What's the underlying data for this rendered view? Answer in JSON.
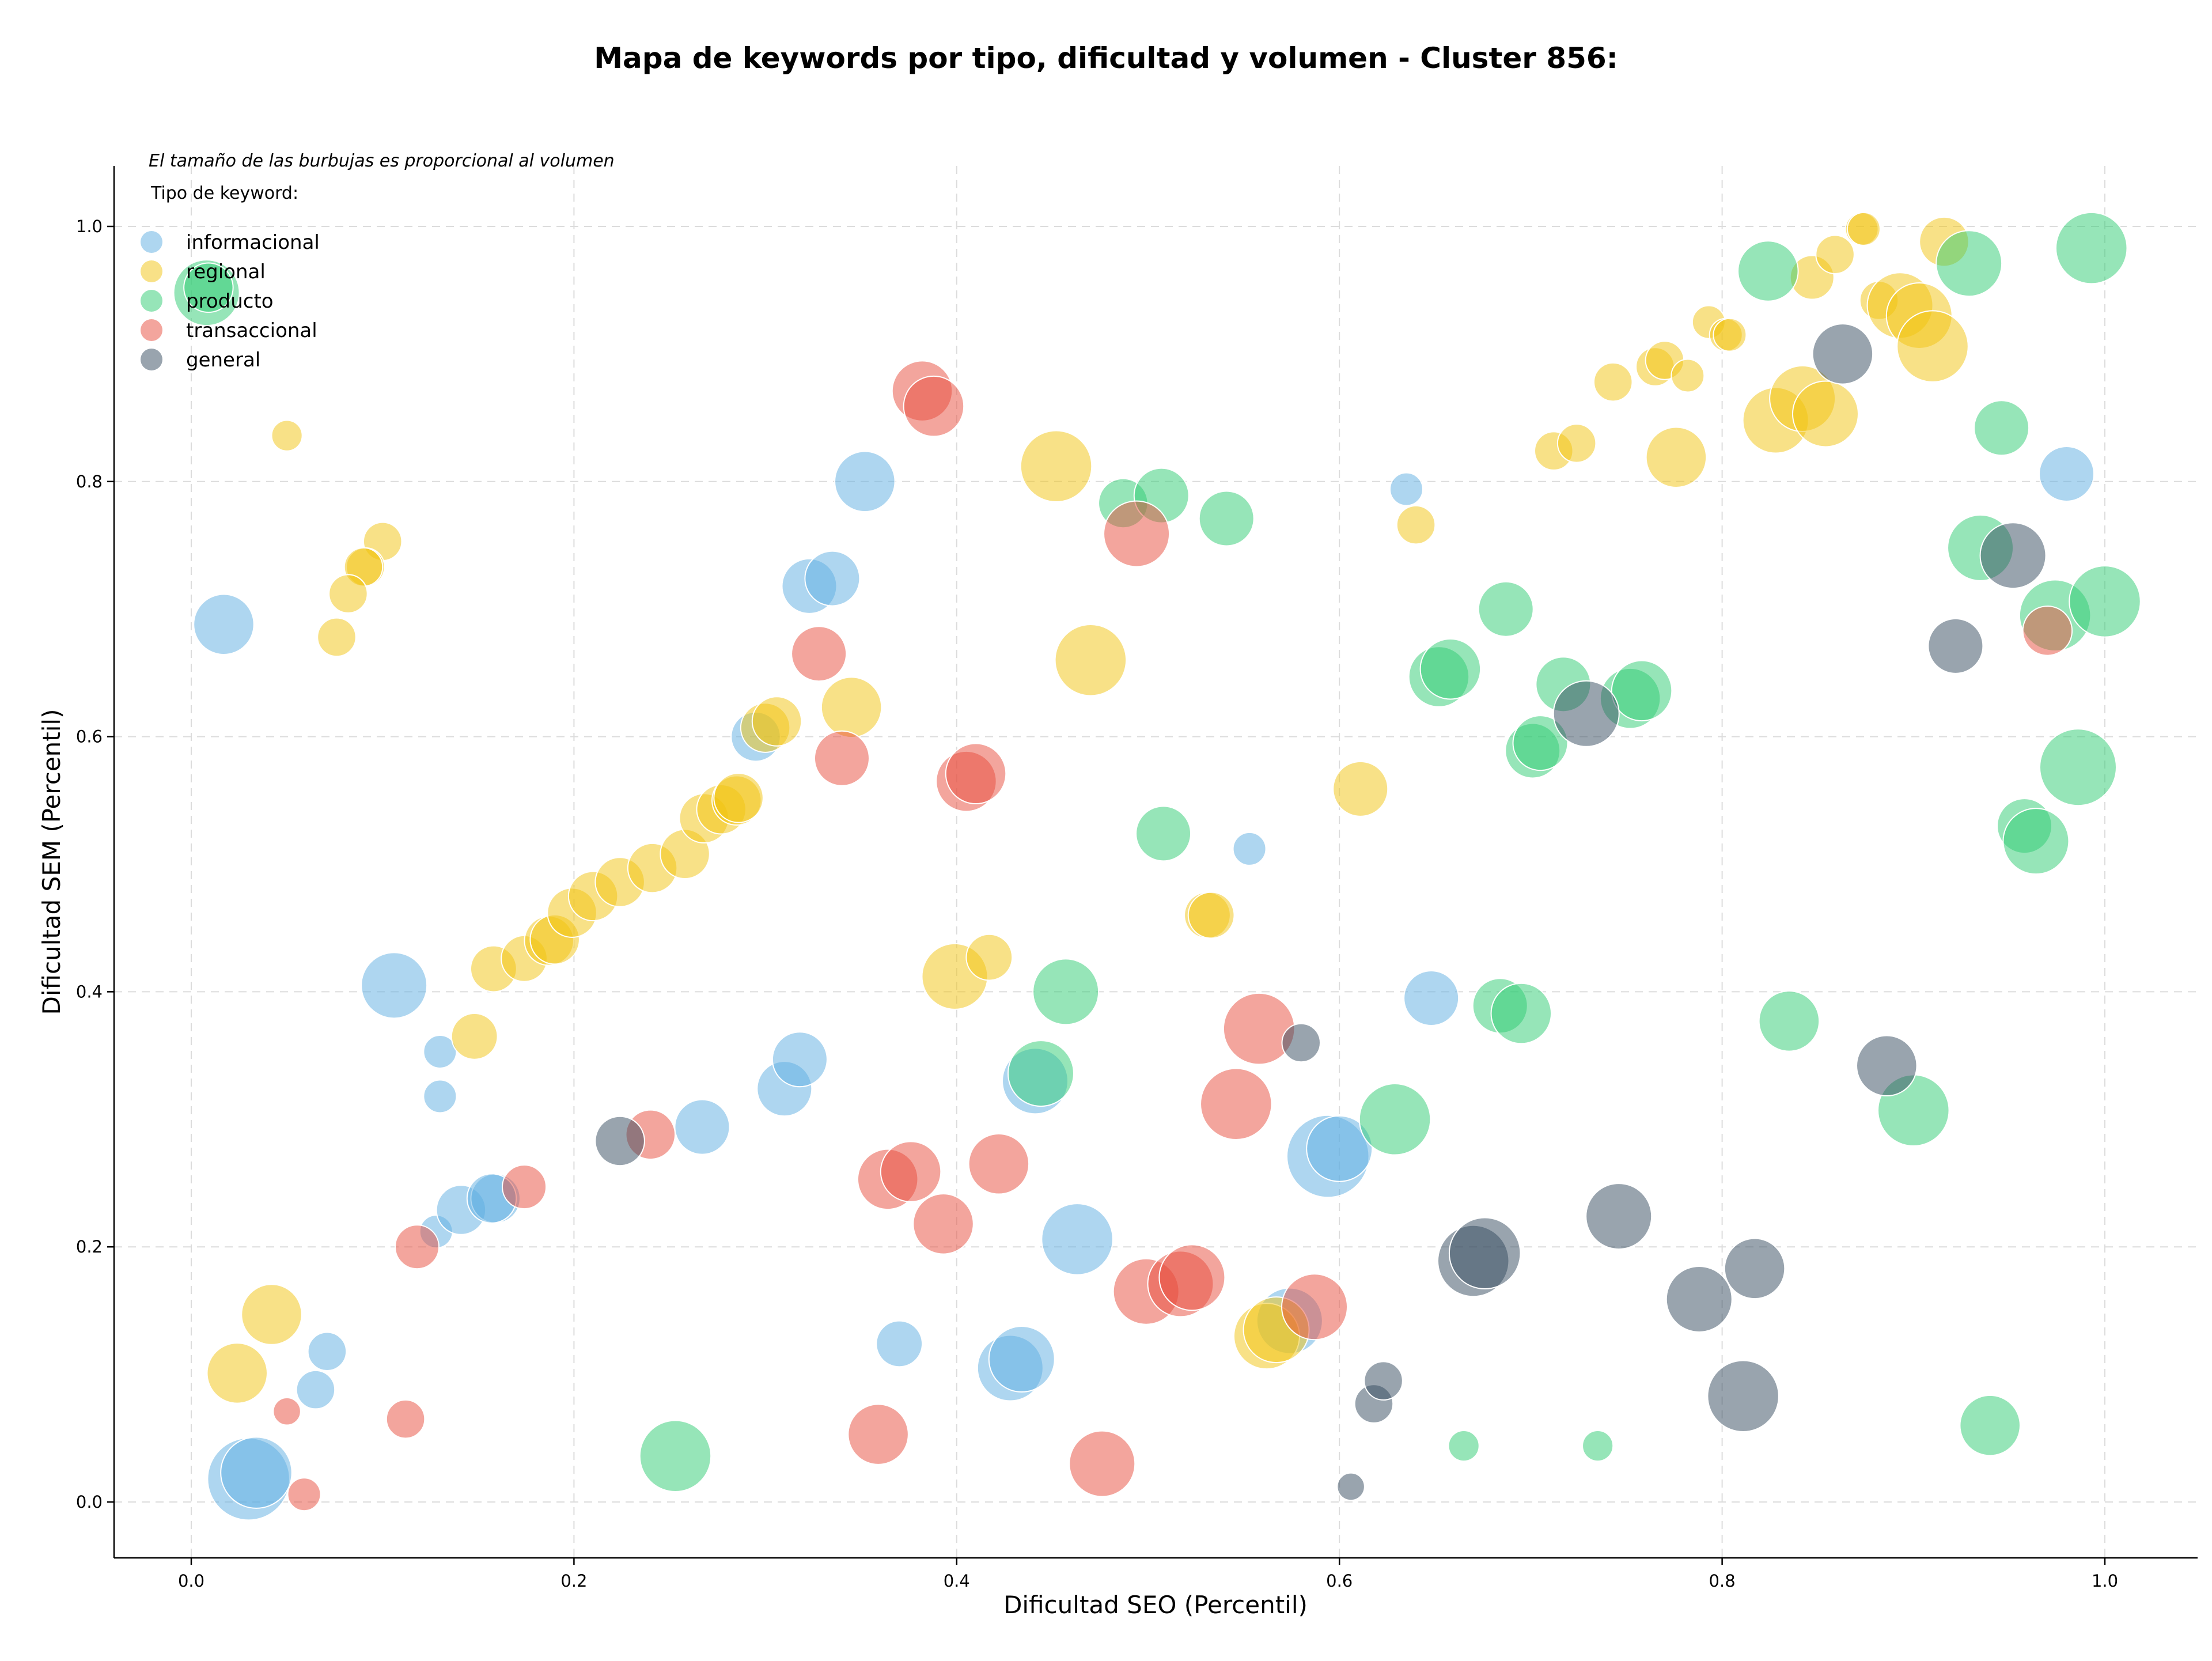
{
  "chart_data": {
    "type": "scatter",
    "title": "Mapa de keywords por tipo, dificultad y volumen - Cluster 856:",
    "xlabel": "Dificultad SEO (Percentil)",
    "ylabel": "Dificultad SEM (Percentil)",
    "xlim": [
      -0.04,
      1.05
    ],
    "ylim": [
      -0.04,
      1.05
    ],
    "xticks": [
      "0.0",
      "0.2",
      "0.4",
      "0.6",
      "0.8",
      "1.0"
    ],
    "yticks": [
      "0.0",
      "0.2",
      "0.4",
      "0.6",
      "0.8",
      "1.0"
    ],
    "grid": true,
    "note": "El tamaño de las burbujas es proporcional al volumen",
    "legend": {
      "title": "Tipo de keyword:",
      "placement": "top-left",
      "entries": [
        {
          "label": "informacional",
          "color": "#5dade2"
        },
        {
          "label": "regional",
          "color": "#f1c40f"
        },
        {
          "label": "producto",
          "color": "#2ecc71"
        },
        {
          "label": "transaccional",
          "color": "#e74c3c"
        },
        {
          "label": "general",
          "color": "#34495e"
        }
      ]
    },
    "size_scale": "volume",
    "series": [
      {
        "name": "informacional",
        "color": "#5dade2",
        "points": [
          [
            0.017,
            0.688,
            0.55
          ],
          [
            0.106,
            0.405,
            0.6
          ],
          [
            0.13,
            0.353,
            0.3
          ],
          [
            0.13,
            0.318,
            0.3
          ],
          [
            0.128,
            0.212,
            0.3
          ],
          [
            0.141,
            0.229,
            0.45
          ],
          [
            0.159,
            0.238,
            0.45
          ],
          [
            0.157,
            0.238,
            0.45
          ],
          [
            0.071,
            0.118,
            0.35
          ],
          [
            0.065,
            0.088,
            0.35
          ],
          [
            0.03,
            0.018,
            0.75
          ],
          [
            0.034,
            0.023,
            0.65
          ],
          [
            0.267,
            0.294,
            0.5
          ],
          [
            0.295,
            0.6,
            0.45
          ],
          [
            0.31,
            0.324,
            0.5
          ],
          [
            0.318,
            0.347,
            0.5
          ],
          [
            0.323,
            0.718,
            0.5
          ],
          [
            0.335,
            0.724,
            0.5
          ],
          [
            0.352,
            0.8,
            0.55
          ],
          [
            0.37,
            0.124,
            0.42
          ],
          [
            0.428,
            0.105,
            0.6
          ],
          [
            0.434,
            0.112,
            0.6
          ],
          [
            0.441,
            0.33,
            0.6
          ],
          [
            0.463,
            0.206,
            0.65
          ],
          [
            0.553,
            0.512,
            0.3
          ],
          [
            0.574,
            0.142,
            0.6
          ],
          [
            0.594,
            0.271,
            0.75
          ],
          [
            0.6,
            0.277,
            0.6
          ],
          [
            0.635,
            0.794,
            0.3
          ],
          [
            0.648,
            0.395,
            0.5
          ],
          [
            0.98,
            0.806,
            0.5
          ]
        ]
      },
      {
        "name": "regional",
        "color": "#f1c40f",
        "points": [
          [
            0.05,
            0.836,
            0.28
          ],
          [
            0.1,
            0.753,
            0.35
          ],
          [
            0.091,
            0.733,
            0.35
          ],
          [
            0.09,
            0.733,
            0.35
          ],
          [
            0.082,
            0.712,
            0.35
          ],
          [
            0.076,
            0.678,
            0.35
          ],
          [
            0.024,
            0.101,
            0.55
          ],
          [
            0.042,
            0.147,
            0.55
          ],
          [
            0.148,
            0.365,
            0.42
          ],
          [
            0.158,
            0.418,
            0.42
          ],
          [
            0.174,
            0.426,
            0.42
          ],
          [
            0.187,
            0.44,
            0.45
          ],
          [
            0.19,
            0.441,
            0.45
          ],
          [
            0.199,
            0.462,
            0.45
          ],
          [
            0.21,
            0.475,
            0.45
          ],
          [
            0.224,
            0.486,
            0.45
          ],
          [
            0.241,
            0.497,
            0.45
          ],
          [
            0.258,
            0.508,
            0.45
          ],
          [
            0.268,
            0.536,
            0.45
          ],
          [
            0.277,
            0.543,
            0.45
          ],
          [
            0.285,
            0.55,
            0.45
          ],
          [
            0.286,
            0.552,
            0.45
          ],
          [
            0.3,
            0.607,
            0.45
          ],
          [
            0.306,
            0.612,
            0.45
          ],
          [
            0.345,
            0.623,
            0.55
          ],
          [
            0.399,
            0.412,
            0.6
          ],
          [
            0.417,
            0.427,
            0.42
          ],
          [
            0.452,
            0.812,
            0.65
          ],
          [
            0.47,
            0.66,
            0.65
          ],
          [
            0.531,
            0.46,
            0.42
          ],
          [
            0.533,
            0.46,
            0.42
          ],
          [
            0.562,
            0.13,
            0.6
          ],
          [
            0.567,
            0.135,
            0.6
          ],
          [
            0.611,
            0.559,
            0.5
          ],
          [
            0.64,
            0.766,
            0.35
          ],
          [
            0.712,
            0.824,
            0.35
          ],
          [
            0.724,
            0.83,
            0.35
          ],
          [
            0.743,
            0.878,
            0.35
          ],
          [
            0.765,
            0.89,
            0.35
          ],
          [
            0.77,
            0.895,
            0.35
          ],
          [
            0.782,
            0.883,
            0.3
          ],
          [
            0.776,
            0.819,
            0.55
          ],
          [
            0.793,
            0.925,
            0.3
          ],
          [
            0.802,
            0.915,
            0.3
          ],
          [
            0.804,
            0.915,
            0.3
          ],
          [
            0.828,
            0.848,
            0.6
          ],
          [
            0.842,
            0.865,
            0.6
          ],
          [
            0.854,
            0.853,
            0.6
          ],
          [
            0.847,
            0.96,
            0.4
          ],
          [
            0.859,
            0.978,
            0.35
          ],
          [
            0.873,
            0.998,
            0.3
          ],
          [
            0.874,
            0.998,
            0.3
          ],
          [
            0.882,
            0.942,
            0.35
          ],
          [
            0.893,
            0.938,
            0.6
          ],
          [
            0.903,
            0.93,
            0.6
          ],
          [
            0.91,
            0.906,
            0.65
          ],
          [
            0.916,
            0.988,
            0.45
          ]
        ]
      },
      {
        "name": "producto",
        "color": "#2ecc71",
        "points": [
          [
            0.008,
            0.948,
            0.6
          ],
          [
            0.009,
            0.952,
            0.45
          ],
          [
            0.253,
            0.036,
            0.65
          ],
          [
            0.444,
            0.336,
            0.6
          ],
          [
            0.457,
            0.4,
            0.6
          ],
          [
            0.487,
            0.783,
            0.45
          ],
          [
            0.507,
            0.789,
            0.5
          ],
          [
            0.508,
            0.524,
            0.5
          ],
          [
            0.541,
            0.771,
            0.5
          ],
          [
            0.629,
            0.3,
            0.65
          ],
          [
            0.652,
            0.647,
            0.55
          ],
          [
            0.658,
            0.653,
            0.55
          ],
          [
            0.665,
            0.044,
            0.28
          ],
          [
            0.687,
            0.7,
            0.5
          ],
          [
            0.684,
            0.389,
            0.5
          ],
          [
            0.695,
            0.383,
            0.55
          ],
          [
            0.701,
            0.589,
            0.5
          ],
          [
            0.705,
            0.595,
            0.5
          ],
          [
            0.717,
            0.641,
            0.5
          ],
          [
            0.735,
            0.044,
            0.28
          ],
          [
            0.752,
            0.63,
            0.55
          ],
          [
            0.758,
            0.636,
            0.55
          ],
          [
            0.824,
            0.965,
            0.55
          ],
          [
            0.835,
            0.377,
            0.55
          ],
          [
            0.9,
            0.307,
            0.65
          ],
          [
            0.929,
            0.971,
            0.6
          ],
          [
            0.935,
            0.748,
            0.6
          ],
          [
            0.94,
            0.06,
            0.55
          ],
          [
            0.946,
            0.842,
            0.5
          ],
          [
            0.958,
            0.53,
            0.5
          ],
          [
            0.964,
            0.518,
            0.6
          ],
          [
            0.974,
            0.695,
            0.65
          ],
          [
            0.986,
            0.576,
            0.7
          ],
          [
            0.993,
            0.983,
            0.65
          ],
          [
            1.0,
            0.706,
            0.65
          ]
        ]
      },
      {
        "name": "transaccional",
        "color": "#e74c3c",
        "points": [
          [
            0.05,
            0.071,
            0.25
          ],
          [
            0.059,
            0.006,
            0.3
          ],
          [
            0.112,
            0.065,
            0.35
          ],
          [
            0.118,
            0.2,
            0.4
          ],
          [
            0.174,
            0.247,
            0.4
          ],
          [
            0.24,
            0.288,
            0.45
          ],
          [
            0.328,
            0.665,
            0.5
          ],
          [
            0.34,
            0.583,
            0.5
          ],
          [
            0.359,
            0.053,
            0.55
          ],
          [
            0.364,
            0.253,
            0.55
          ],
          [
            0.376,
            0.259,
            0.55
          ],
          [
            0.382,
            0.871,
            0.55
          ],
          [
            0.388,
            0.859,
            0.55
          ],
          [
            0.393,
            0.218,
            0.55
          ],
          [
            0.405,
            0.565,
            0.55
          ],
          [
            0.41,
            0.571,
            0.55
          ],
          [
            0.422,
            0.265,
            0.55
          ],
          [
            0.476,
            0.03,
            0.6
          ],
          [
            0.494,
            0.759,
            0.6
          ],
          [
            0.499,
            0.165,
            0.6
          ],
          [
            0.517,
            0.171,
            0.6
          ],
          [
            0.523,
            0.176,
            0.6
          ],
          [
            0.546,
            0.312,
            0.65
          ],
          [
            0.558,
            0.371,
            0.65
          ],
          [
            0.587,
            0.153,
            0.6
          ],
          [
            0.97,
            0.683,
            0.45
          ]
        ]
      },
      {
        "name": "general",
        "color": "#34495e",
        "points": [
          [
            0.224,
            0.283,
            0.45
          ],
          [
            0.58,
            0.36,
            0.35
          ],
          [
            0.606,
            0.012,
            0.25
          ],
          [
            0.618,
            0.077,
            0.35
          ],
          [
            0.623,
            0.095,
            0.35
          ],
          [
            0.67,
            0.189,
            0.65
          ],
          [
            0.676,
            0.195,
            0.65
          ],
          [
            0.729,
            0.618,
            0.6
          ],
          [
            0.746,
            0.224,
            0.6
          ],
          [
            0.788,
            0.159,
            0.6
          ],
          [
            0.817,
            0.183,
            0.55
          ],
          [
            0.811,
            0.083,
            0.65
          ],
          [
            0.863,
            0.9,
            0.55
          ],
          [
            0.886,
            0.342,
            0.55
          ],
          [
            0.922,
            0.671,
            0.5
          ],
          [
            0.952,
            0.742,
            0.6
          ]
        ]
      }
    ]
  }
}
